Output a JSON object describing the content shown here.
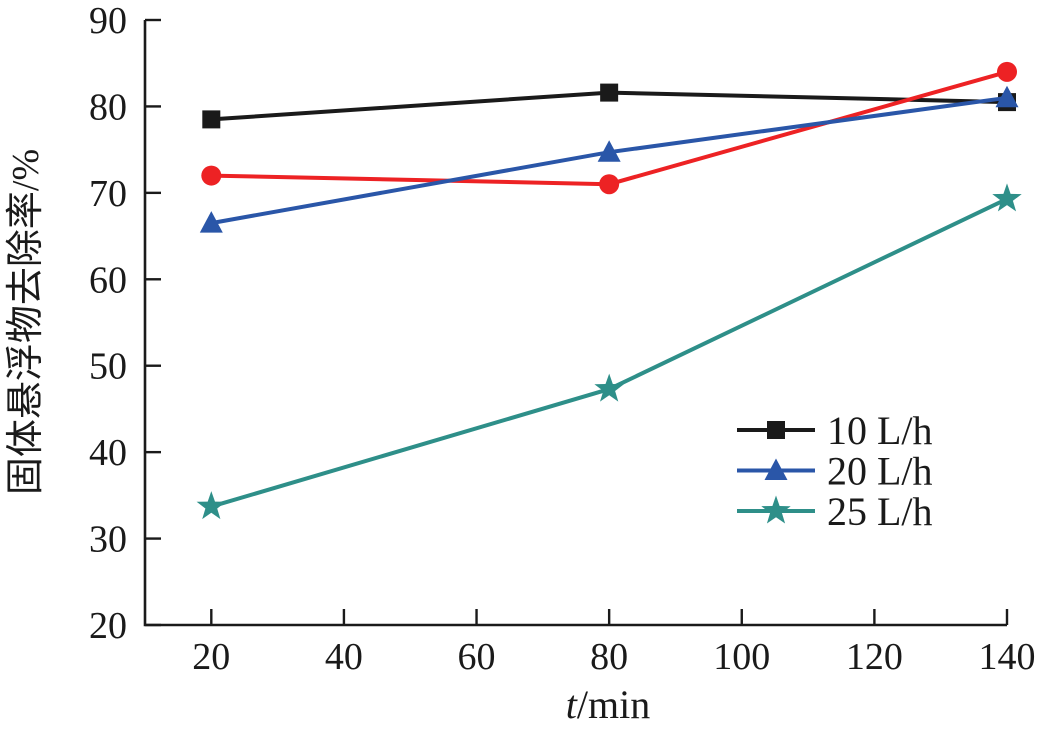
{
  "figure": {
    "background": "#ffffff",
    "axis_color": "#1a1a1a"
  },
  "chart_data": {
    "type": "line",
    "title": "",
    "xlabel_italic": "t",
    "xlabel_unit": "/min",
    "ylabel": "固体悬浮物去除率/%",
    "x": [
      20,
      80,
      140
    ],
    "xlim": [
      10,
      140
    ],
    "ylim": [
      20,
      90
    ],
    "xticks": [
      20,
      40,
      60,
      80,
      100,
      120,
      140
    ],
    "yticks": [
      20,
      30,
      40,
      50,
      60,
      70,
      80,
      90
    ],
    "grid": false,
    "legend_position": "right-center",
    "legend_frame": false,
    "series": [
      {
        "name": "10 L/h",
        "marker": "square",
        "color": "#1a1a1a",
        "values": [
          78.5,
          81.6,
          80.5
        ],
        "in_legend": true
      },
      {
        "name": "",
        "marker": "circle",
        "color": "#ed2224",
        "values": [
          72.0,
          71.0,
          84.0
        ],
        "in_legend": false
      },
      {
        "name": "20 L/h",
        "marker": "triangle",
        "color": "#2a56a8",
        "values": [
          66.5,
          74.7,
          81.0
        ],
        "in_legend": true
      },
      {
        "name": "25 L/h",
        "marker": "star",
        "color": "#2e8f89",
        "values": [
          33.7,
          47.3,
          69.3
        ],
        "in_legend": true
      }
    ]
  }
}
